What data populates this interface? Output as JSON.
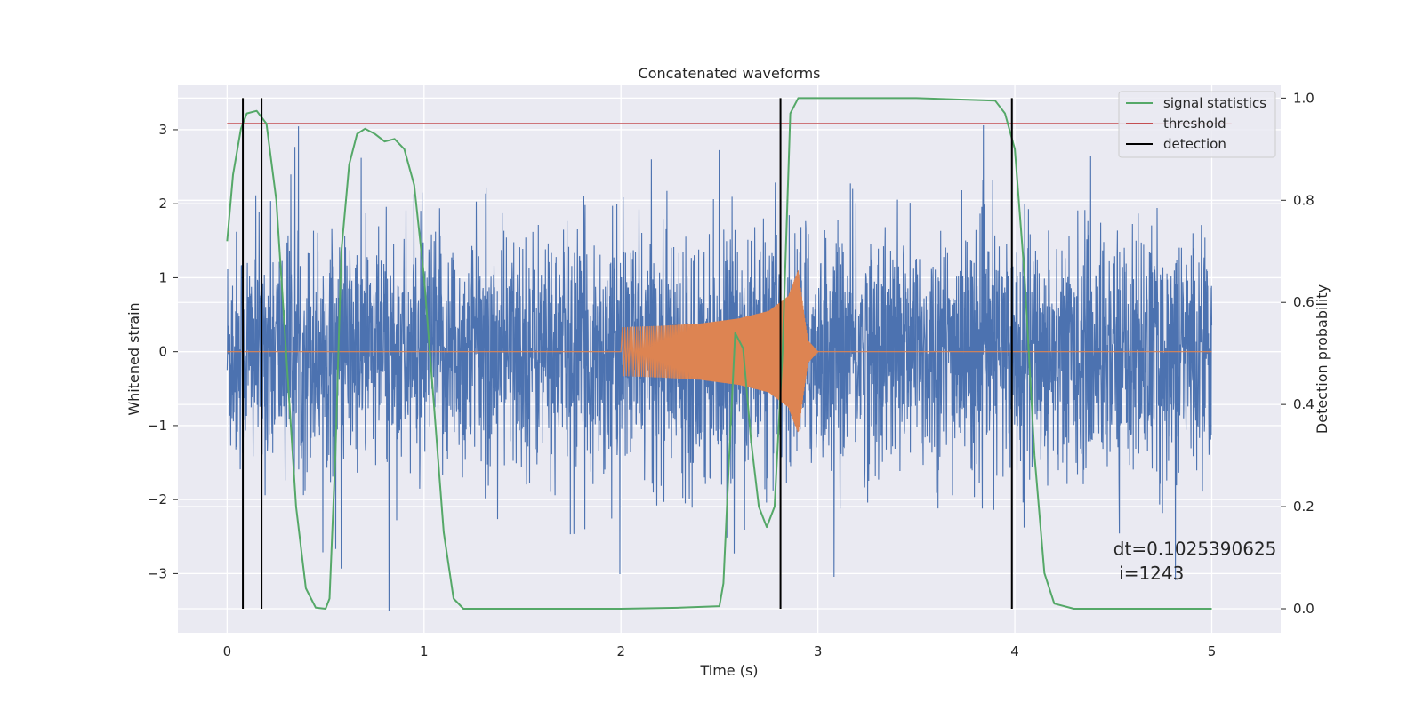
{
  "chart_data": {
    "type": "line",
    "title": "Concatenated waveforms",
    "xlabel": "Time (s)",
    "ylabel": "Whitened strain",
    "y2label": "Detection probability",
    "xlim": [
      -0.25,
      5.35
    ],
    "ylim": [
      -3.8,
      3.6
    ],
    "y2lim": [
      -0.047,
      1.025
    ],
    "xticks": [
      0,
      1,
      2,
      3,
      4,
      5
    ],
    "yticks": [
      -3,
      -2,
      -1,
      0,
      1,
      2,
      3
    ],
    "y2ticks": [
      0.0,
      0.2,
      0.4,
      0.6,
      0.8,
      1.0
    ],
    "xtick_labels": [
      "0",
      "1",
      "2",
      "3",
      "4",
      "5"
    ],
    "ytick_labels": [
      "−3",
      "−2",
      "−1",
      "0",
      "1",
      "2",
      "3"
    ],
    "y2tick_labels": [
      "0.0",
      "0.2",
      "0.4",
      "0.6",
      "0.8",
      "1.0"
    ],
    "grid": true,
    "legend_position": "top-right",
    "legend": [
      {
        "label": "signal statistics",
        "color": "#55a868"
      },
      {
        "label": "threshold",
        "color": "#c44e52"
      },
      {
        "label": "detection",
        "color": "#000000"
      }
    ],
    "noise": {
      "color": "#4c72b0",
      "x_range": [
        0,
        5
      ],
      "std": 0.8,
      "peak_range": [
        -3.5,
        3.25
      ]
    },
    "injection": {
      "color": "#dd8452",
      "x": [
        2.0,
        2.2,
        2.4,
        2.6,
        2.75,
        2.85,
        2.9,
        2.93,
        2.95,
        3.0
      ],
      "envelope": [
        0.33,
        0.35,
        0.38,
        0.45,
        0.55,
        0.75,
        1.1,
        0.5,
        0.15,
        0.0
      ]
    },
    "signal_statistics": {
      "color": "#55a868",
      "x": [
        0.0,
        0.03,
        0.07,
        0.1,
        0.15,
        0.2,
        0.25,
        0.3,
        0.35,
        0.4,
        0.45,
        0.5,
        0.52,
        0.55,
        0.58,
        0.62,
        0.66,
        0.7,
        0.75,
        0.8,
        0.85,
        0.9,
        0.95,
        1.0,
        1.05,
        1.1,
        1.15,
        1.2,
        1.5,
        2.0,
        2.3,
        2.5,
        2.52,
        2.55,
        2.58,
        2.62,
        2.66,
        2.7,
        2.74,
        2.78,
        2.82,
        2.86,
        2.9,
        3.0,
        3.5,
        3.9,
        3.95,
        4.0,
        4.05,
        4.1,
        4.15,
        4.2,
        4.3,
        5.0
      ],
      "y": [
        0.72,
        0.85,
        0.94,
        0.97,
        0.975,
        0.95,
        0.8,
        0.5,
        0.2,
        0.04,
        0.002,
        0.0,
        0.02,
        0.3,
        0.7,
        0.87,
        0.93,
        0.94,
        0.93,
        0.915,
        0.92,
        0.9,
        0.83,
        0.65,
        0.4,
        0.15,
        0.02,
        0.0,
        0.0,
        0.0,
        0.002,
        0.005,
        0.05,
        0.3,
        0.54,
        0.51,
        0.33,
        0.2,
        0.16,
        0.2,
        0.5,
        0.97,
        1.0,
        1.0,
        1.0,
        0.995,
        0.97,
        0.9,
        0.65,
        0.3,
        0.07,
        0.01,
        0.0,
        0.0
      ]
    },
    "threshold": {
      "color": "#c44e52",
      "value": 0.95,
      "x_range": [
        0,
        5.1
      ]
    },
    "detections": {
      "color": "#000000",
      "x": [
        0.08,
        0.175,
        2.81,
        3.985
      ],
      "y_range": [
        0.0,
        1.0
      ]
    },
    "annotation": {
      "line1": "dt=0.1025390625",
      "line2": " i=1243",
      "x": 4.5,
      "y_line1": -2.75,
      "y_line2": -3.08
    }
  }
}
